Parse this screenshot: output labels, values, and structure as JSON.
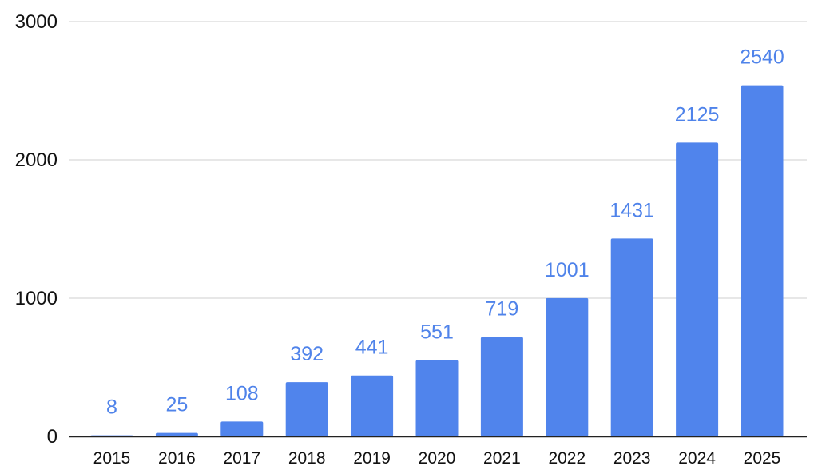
{
  "chart_data": {
    "type": "bar",
    "title": "",
    "xlabel": "",
    "ylabel": "",
    "categories": [
      "2015",
      "2016",
      "2017",
      "2018",
      "2019",
      "2020",
      "2021",
      "2022",
      "2023",
      "2024",
      "2025"
    ],
    "values": [
      8,
      25,
      108,
      392,
      441,
      551,
      719,
      1001,
      1431,
      2125,
      2540
    ],
    "ylim": [
      0,
      3000
    ],
    "yticks": [
      0,
      1000,
      2000,
      3000
    ],
    "grid": true,
    "bar_color": "#5084ec",
    "label_color": "#4f83ea",
    "gridline_color": "#cfcfcf",
    "axis_color": "#222222"
  }
}
